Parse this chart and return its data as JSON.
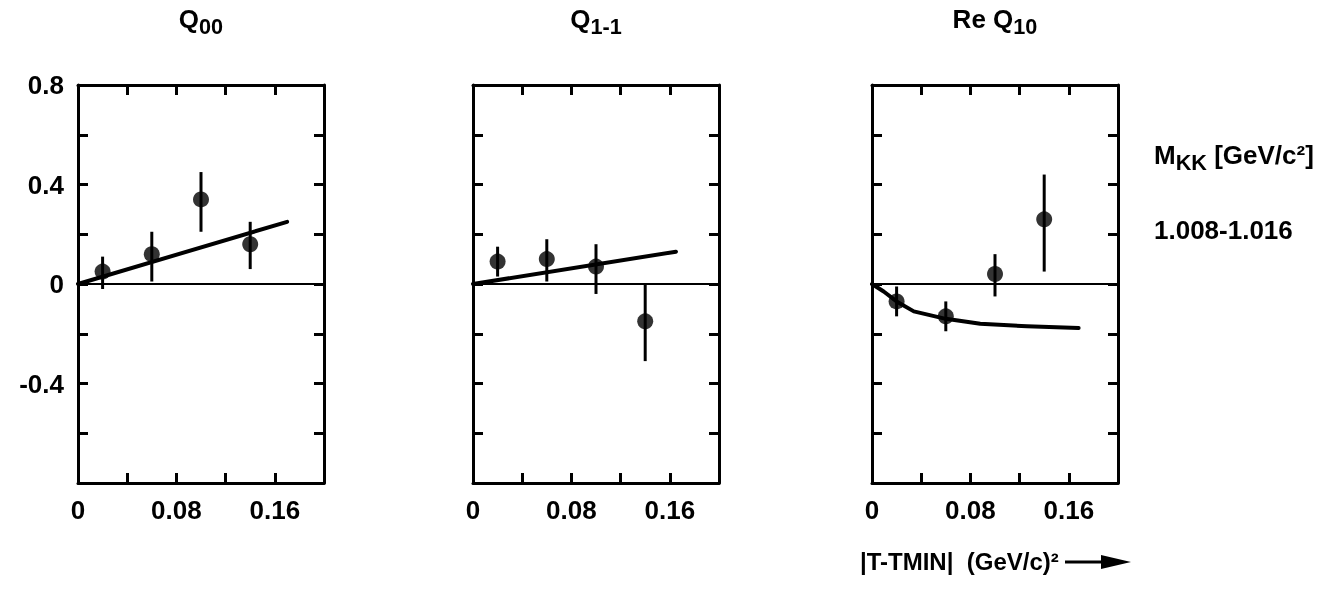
{
  "chart_data": [
    {
      "type": "scatter",
      "title": "Q$_{00}$",
      "xlim": [
        0,
        0.2
      ],
      "xticks": [
        0,
        {
          "value": 0.04,
          "label": null
        },
        0.08,
        {
          "value": 0.12,
          "label": null
        },
        0.16,
        {
          "value": 0.2,
          "label": null
        }
      ],
      "ylim": [
        -0.8,
        0.8
      ],
      "yticks": [
        {
          "value": -0.8,
          "label": null
        },
        {
          "value": -0.6,
          "label": null
        },
        -0.4,
        {
          "value": -0.2,
          "label": null
        },
        0,
        {
          "value": 0.2,
          "label": null
        },
        0.4,
        {
          "value": 0.6,
          "label": null
        },
        0.8
      ],
      "ref_lines": [
        {
          "axis": "y",
          "value": 0,
          "color": "#000000"
        }
      ],
      "series": [
        {
          "color": "#000000",
          "marker": "circle",
          "x": [
            0.02,
            0.06,
            0.1,
            0.14
          ],
          "values": [
            0.05,
            0.12,
            0.34,
            0.16
          ],
          "errors": [
            [
              -0.02,
              0.11
            ],
            [
              0.01,
              0.21
            ],
            [
              0.21,
              0.45
            ],
            [
              0.06,
              0.25
            ]
          ]
        },
        {
          "type": "line",
          "color": "#000000",
          "marker": "none",
          "x": [
            0,
            0.17
          ],
          "values": [
            0,
            0.25
          ]
        }
      ]
    },
    {
      "type": "scatter",
      "title": "Q$_{1-1}$",
      "tick_labels": "x",
      "xlim": [
        0,
        0.2
      ],
      "xticks": [
        0,
        {
          "value": 0.04,
          "label": null
        },
        0.08,
        {
          "value": 0.12,
          "label": null
        },
        0.16,
        {
          "value": 0.2,
          "label": null
        }
      ],
      "ylim": [
        -0.8,
        0.8
      ],
      "yticks": [
        {
          "value": -0.8,
          "label": null
        },
        {
          "value": -0.6,
          "label": null
        },
        -0.4,
        {
          "value": -0.2,
          "label": null
        },
        0,
        {
          "value": 0.2,
          "label": null
        },
        0.4,
        {
          "value": 0.6,
          "label": null
        },
        0.8
      ],
      "ref_lines": [
        {
          "axis": "y",
          "value": 0,
          "color": "#000000"
        }
      ],
      "series": [
        {
          "color": "#000000",
          "marker": "circle",
          "x": [
            0.02,
            0.06,
            0.1,
            0.14
          ],
          "values": [
            0.09,
            0.1,
            0.07,
            -0.15
          ],
          "errors": [
            [
              0.03,
              0.15
            ],
            [
              0.01,
              0.18
            ],
            [
              -0.04,
              0.16
            ],
            [
              -0.31,
              0
            ]
          ]
        },
        {
          "type": "line",
          "color": "#000000",
          "marker": "none",
          "x": [
            0,
            0.165
          ],
          "values": [
            0,
            0.13
          ]
        }
      ]
    },
    {
      "type": "scatter",
      "title": "Re Q$_{10}$",
      "tick_labels": "x",
      "xlabel": "|T-TMIN|  (GeV/c)²",
      "annotations": [
        "M$_{KK}$ [GeV/c²]",
        "1.008-1.016"
      ],
      "xlim": [
        0,
        0.2
      ],
      "xticks": [
        0,
        {
          "value": 0.04,
          "label": null
        },
        0.08,
        {
          "value": 0.12,
          "label": null
        },
        0.16,
        {
          "value": 0.2,
          "label": null
        }
      ],
      "ylim": [
        -0.8,
        0.8
      ],
      "yticks": [
        {
          "value": -0.8,
          "label": null
        },
        {
          "value": -0.6,
          "label": null
        },
        -0.4,
        {
          "value": -0.2,
          "label": null
        },
        0,
        {
          "value": 0.2,
          "label": null
        },
        0.4,
        {
          "value": 0.6,
          "label": null
        },
        0.8
      ],
      "ref_lines": [
        {
          "axis": "y",
          "value": 0,
          "color": "#000000"
        }
      ],
      "series": [
        {
          "color": "#000000",
          "marker": "circle",
          "x": [
            0.02,
            0.06,
            0.1,
            0.14
          ],
          "values": [
            -0.07,
            -0.13,
            0.04,
            0.26
          ],
          "errors": [
            [
              -0.13,
              -0.01
            ],
            [
              -0.19,
              -0.07
            ],
            [
              -0.05,
              0.12
            ],
            [
              0.05,
              0.44
            ]
          ]
        },
        {
          "type": "line",
          "color": "#000000",
          "marker": "none",
          "x": [
            0,
            0.0095,
            0.02,
            0.034,
            0.06,
            0.088,
            0.126,
            0.168
          ],
          "values": [
            0,
            -0.03,
            -0.07,
            -0.11,
            -0.14,
            -0.16,
            -0.17,
            -0.177
          ]
        }
      ]
    }
  ]
}
